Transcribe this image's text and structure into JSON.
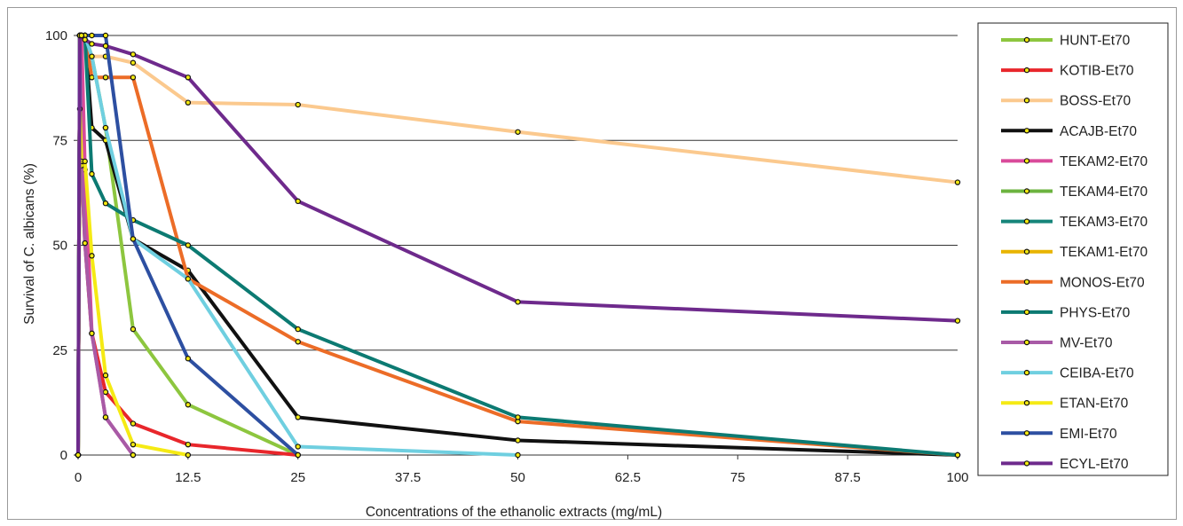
{
  "chart_data": {
    "type": "line",
    "title": "",
    "xlabel": "Concentrations of the ethanolic extracts (mg/mL)",
    "ylabel": "Survival of C. albicans (%)",
    "xlim": [
      0,
      100
    ],
    "ylim": [
      0,
      100
    ],
    "xticks": [
      0,
      12.5,
      25,
      37.5,
      50,
      62.5,
      75,
      87.5,
      100
    ],
    "xtick_labels": [
      "0",
      "12.5",
      "25",
      "37.5",
      "50",
      "62.5",
      "75",
      "87.5",
      "100"
    ],
    "yticks": [
      0,
      25,
      50,
      75,
      100
    ],
    "ytick_labels": [
      "0",
      "25",
      "50",
      "75",
      "100"
    ],
    "grid": "horizontal",
    "legend_position": "right",
    "series": [
      {
        "name": "HUNT-Et70",
        "color": "#8dc63f",
        "x": [
          0,
          0.195,
          0.39,
          0.78,
          1.56,
          3.125,
          6.25,
          12.5,
          25
        ],
        "y": [
          0,
          100,
          100,
          100,
          95,
          78,
          30,
          12,
          0
        ]
      },
      {
        "name": "KOTIB-Et70",
        "color": "#e8262b",
        "x": [
          0,
          0.195,
          0.39,
          0.78,
          1.56,
          3.125,
          6.25,
          12.5,
          25
        ],
        "y": [
          0,
          100,
          69,
          50.5,
          29,
          15,
          7.5,
          2.5,
          0
        ]
      },
      {
        "name": "BOSS-Et70",
        "color": "#fbc98e",
        "x": [
          0,
          0.195,
          0.39,
          0.78,
          1.56,
          3.125,
          6.25,
          12.5,
          25,
          50,
          100
        ],
        "y": [
          0,
          100,
          100,
          100,
          95,
          95,
          93.5,
          84,
          83.5,
          77,
          65
        ]
      },
      {
        "name": "ACAJB-Et70",
        "color": "#111111",
        "x": [
          0,
          0.195,
          0.39,
          0.78,
          1.56,
          3.125,
          6.25,
          12.5,
          25,
          50,
          100
        ],
        "y": [
          0,
          100,
          100,
          100,
          78,
          75,
          51.5,
          44,
          9,
          3.5,
          0
        ]
      },
      {
        "name": "TEKAM2-Et70",
        "color": "#d94a9a",
        "x": [
          0,
          0.195,
          0.39,
          0.78,
          1.56,
          3.125,
          6.25
        ],
        "y": [
          0,
          100,
          100,
          68,
          29,
          9,
          0
        ]
      },
      {
        "name": "TEKAM4-Et70",
        "color": "#6cb33f",
        "x": [
          0,
          0.195,
          0.39,
          0.78
        ],
        "y": [
          0,
          100,
          100,
          100
        ]
      },
      {
        "name": "TEKAM3-Et70",
        "color": "#16857a",
        "x": [
          0,
          0.195,
          0.39
        ],
        "y": [
          0,
          100,
          100
        ]
      },
      {
        "name": "TEKAM1-Et70",
        "color": "#e8b400",
        "x": [
          0,
          0.195,
          0.39
        ],
        "y": [
          0,
          100,
          100
        ]
      },
      {
        "name": "MONOS-Et70",
        "color": "#ec6c27",
        "x": [
          0,
          0.195,
          0.39,
          0.78,
          1.56,
          3.125,
          6.25,
          12.5,
          25,
          50,
          100
        ],
        "y": [
          0,
          100,
          100,
          100,
          90,
          90,
          90,
          42,
          27,
          8,
          0
        ]
      },
      {
        "name": "PHYS-Et70",
        "color": "#0c7a72",
        "x": [
          0,
          0.195,
          0.39,
          0.78,
          1.56,
          3.125,
          6.25,
          12.5,
          25,
          50,
          100
        ],
        "y": [
          0,
          100,
          100,
          100,
          67,
          60,
          56,
          50,
          30,
          9,
          0
        ]
      },
      {
        "name": "MV-Et70",
        "color": "#a85aa6",
        "x": [
          0,
          0.195,
          0.39,
          0.78,
          1.56,
          3.125,
          6.25
        ],
        "y": [
          0,
          100,
          69,
          50.5,
          29,
          9,
          0
        ]
      },
      {
        "name": "CEIBA-Et70",
        "color": "#6fcfe0",
        "x": [
          0,
          0.195,
          0.39,
          0.78,
          1.56,
          3.125,
          6.25,
          12.5,
          25,
          50
        ],
        "y": [
          0,
          100,
          100,
          100,
          95,
          78,
          51.5,
          42,
          2,
          0
        ]
      },
      {
        "name": "ETAN-Et70",
        "color": "#f5ea14",
        "x": [
          0,
          0.195,
          0.39,
          0.78,
          1.56,
          3.125,
          6.25,
          12.5
        ],
        "y": [
          0,
          82.5,
          70,
          70,
          47.5,
          19,
          2.5,
          0
        ]
      },
      {
        "name": "EMI-Et70",
        "color": "#2d4fa1",
        "x": [
          0,
          0.195,
          0.39,
          0.78,
          1.56,
          3.125,
          6.25,
          12.5,
          25
        ],
        "y": [
          0,
          100,
          100,
          100,
          100,
          100,
          51.5,
          23,
          0
        ]
      },
      {
        "name": "ECYL-Et70",
        "color": "#6e2a8c",
        "x": [
          0,
          0.195,
          0.39,
          0.78,
          1.56,
          3.125,
          6.25,
          12.5,
          25,
          50,
          100
        ],
        "y": [
          0,
          100,
          100,
          99,
          98,
          97.5,
          95.5,
          90,
          60.5,
          36.5,
          32
        ]
      }
    ]
  }
}
